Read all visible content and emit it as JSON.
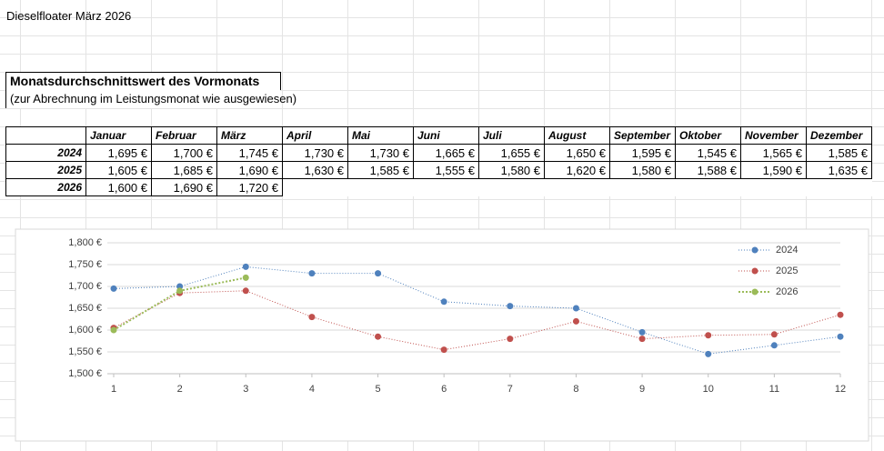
{
  "header": {
    "title": "Dieselfloater März 2026",
    "heading": "Monatsdurchschnittswert des Vormonats",
    "subheading": "(zur Abrechnung im Leistungsmonat wie ausgewiesen)"
  },
  "table": {
    "columns": [
      "Januar",
      "Februar",
      "März",
      "April",
      "Mai",
      "Juni",
      "Juli",
      "August",
      "September",
      "Oktober",
      "November",
      "Dezember"
    ],
    "rows": [
      {
        "label": "2024",
        "cells": [
          "1,695 €",
          "1,700 €",
          "1,745 €",
          "1,730 €",
          "1,730 €",
          "1,665 €",
          "1,655 €",
          "1,650 €",
          "1,595 €",
          "1,545 €",
          "1,565 €",
          "1,585 €"
        ]
      },
      {
        "label": "2025",
        "cells": [
          "1,605 €",
          "1,685 €",
          "1,690 €",
          "1,630 €",
          "1,585 €",
          "1,555 €",
          "1,580 €",
          "1,620 €",
          "1,580 €",
          "1,588 €",
          "1,590 €",
          "1,635 €"
        ]
      },
      {
        "label": "2026",
        "cells": [
          "1,600 €",
          "1,690 €",
          "1,720 €"
        ]
      }
    ]
  },
  "chart_data": {
    "type": "line",
    "x": [
      1,
      2,
      3,
      4,
      5,
      6,
      7,
      8,
      9,
      10,
      11,
      12
    ],
    "series": [
      {
        "name": "2024",
        "color": "#4f81bd",
        "values": [
          1695,
          1700,
          1745,
          1730,
          1730,
          1665,
          1655,
          1650,
          1595,
          1545,
          1565,
          1585
        ]
      },
      {
        "name": "2025",
        "color": "#c0504d",
        "values": [
          1605,
          1685,
          1690,
          1630,
          1585,
          1555,
          1580,
          1620,
          1580,
          1588,
          1590,
          1635
        ]
      },
      {
        "name": "2026",
        "color": "#9bbb59",
        "values": [
          1600,
          1690,
          1720,
          null,
          null,
          null,
          null,
          null,
          null,
          null,
          null,
          null
        ]
      }
    ],
    "xlim": [
      1,
      12
    ],
    "xticks": [
      1,
      2,
      3,
      4,
      5,
      6,
      7,
      8,
      9,
      10,
      11,
      12
    ],
    "ylim": [
      1500,
      1800
    ],
    "yticks": [
      {
        "value": 1500,
        "label": "1,500 €"
      },
      {
        "value": 1550,
        "label": "1,550 €"
      },
      {
        "value": 1600,
        "label": "1,600 €"
      },
      {
        "value": 1650,
        "label": "1,650 €"
      },
      {
        "value": 1700,
        "label": "1,700 €"
      },
      {
        "value": 1750,
        "label": "1,750 €"
      },
      {
        "value": 1800,
        "label": "1,800 €"
      }
    ],
    "grid": true,
    "legend": "top-right"
  }
}
